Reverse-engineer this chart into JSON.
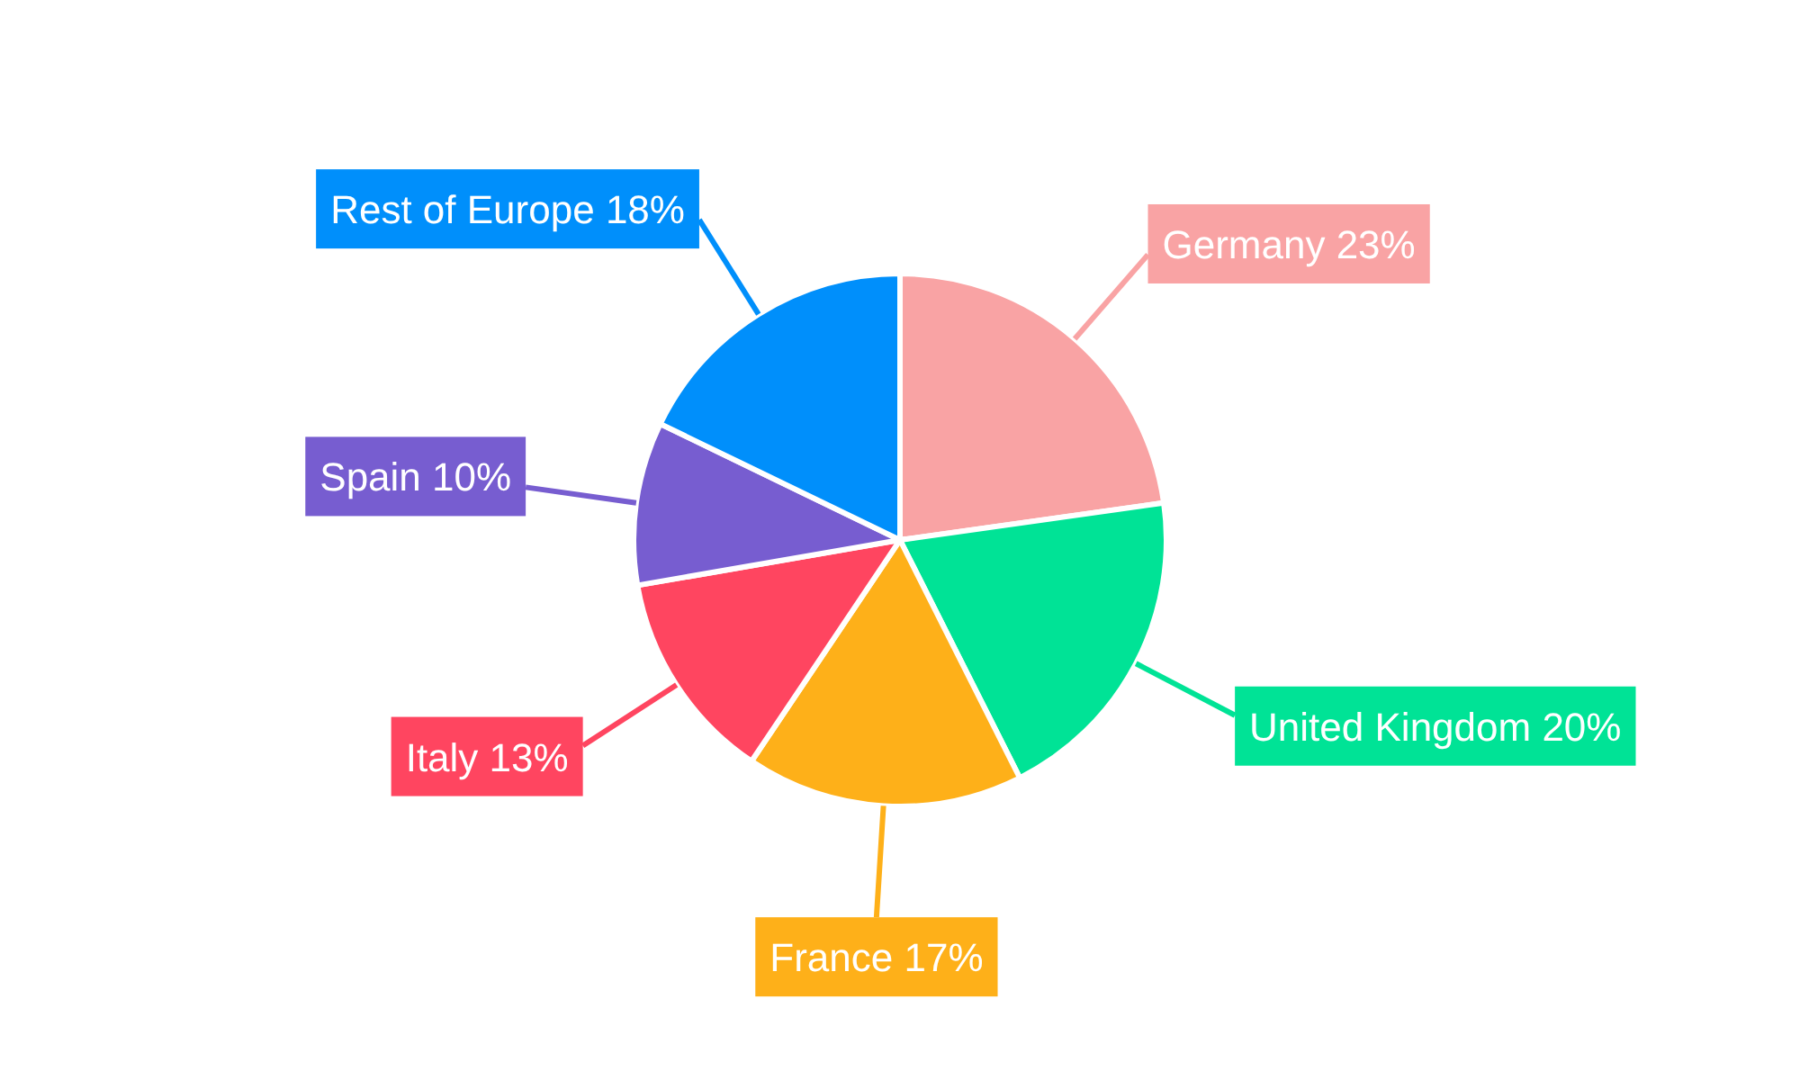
{
  "chart_data": {
    "type": "pie",
    "categories": [
      "Germany",
      "United Kingdom",
      "France",
      "Italy",
      "Spain",
      "Rest of Europe"
    ],
    "values": [
      23,
      20,
      17,
      13,
      10,
      18
    ],
    "value_labels": [
      "23%",
      "20%",
      "17%",
      "13%",
      "10%",
      "18%"
    ],
    "colors": [
      "#f9a3a4",
      "#00e396",
      "#feb019",
      "#ff4560",
      "#775dd0",
      "#008ffb"
    ]
  }
}
